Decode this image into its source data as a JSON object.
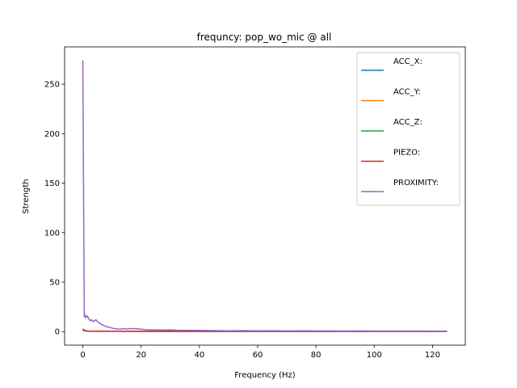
{
  "chart_data": {
    "type": "line",
    "title": "frequncy: pop_wo_mic @ all",
    "xlabel": "Frequency (Hz)",
    "ylabel": "Strength",
    "xlim": [
      -6.25,
      131.25
    ],
    "ylim": [
      -13.7,
      287.7
    ],
    "xticks": [
      0,
      20,
      40,
      60,
      80,
      100,
      120
    ],
    "yticks": [
      0,
      50,
      100,
      150,
      200,
      250
    ],
    "grid": false,
    "legend": "top-right",
    "series": [
      {
        "name": "ACC_X:",
        "color": "#1f77b4",
        "x": [
          0,
          0.5,
          1,
          2,
          5,
          10,
          20,
          40,
          60,
          80,
          100,
          125
        ],
        "y": [
          1.5,
          0.8,
          0.6,
          0.4,
          0.3,
          0.3,
          0.25,
          0.2,
          0.2,
          0.2,
          0.2,
          0.2
        ]
      },
      {
        "name": "ACC_Y:",
        "color": "#ff7f0e",
        "x": [
          0,
          0.5,
          1,
          2,
          5,
          10,
          20,
          40,
          60,
          80,
          100,
          125
        ],
        "y": [
          2.2,
          1.0,
          0.7,
          0.5,
          0.4,
          0.35,
          0.3,
          0.25,
          0.25,
          0.25,
          0.25,
          0.25
        ]
      },
      {
        "name": "ACC_Z:",
        "color": "#2ca02c",
        "x": [
          0,
          0.5,
          1,
          2,
          5,
          10,
          20,
          40,
          60,
          80,
          100,
          125
        ],
        "y": [
          1.8,
          0.9,
          0.6,
          0.5,
          0.4,
          0.35,
          0.3,
          0.25,
          0.25,
          0.25,
          0.25,
          0.25
        ]
      },
      {
        "name": "PIEZO:",
        "color": "#d62728",
        "x": [
          0,
          0.5,
          1,
          2,
          5,
          10,
          20,
          40,
          60,
          80,
          100,
          125
        ],
        "y": [
          3.0,
          1.2,
          0.8,
          0.6,
          0.5,
          0.4,
          0.35,
          0.3,
          0.3,
          0.3,
          0.3,
          0.3
        ]
      },
      {
        "name": "PROXIMITY:",
        "color": "#9467bd",
        "x": [
          0,
          0.25,
          0.5,
          0.75,
          1,
          1.5,
          2,
          2.5,
          3,
          3.5,
          4,
          4.5,
          5,
          5.5,
          6,
          7,
          8,
          9,
          10,
          11,
          12,
          13,
          14,
          15,
          16,
          17,
          18,
          19,
          20,
          22,
          24,
          26,
          28,
          30,
          32,
          35,
          40,
          45,
          50,
          55,
          60,
          65,
          70,
          75,
          80,
          85,
          90,
          95,
          100,
          105,
          110,
          115,
          120,
          125
        ],
        "y": [
          274,
          140,
          15,
          17,
          14,
          16,
          13,
          11,
          12,
          10,
          11,
          12,
          10,
          9,
          8,
          6.5,
          5,
          4.5,
          3.5,
          3,
          2.5,
          2.5,
          3,
          2.6,
          2.8,
          3,
          2.9,
          2.7,
          2.4,
          1.8,
          1.6,
          1.8,
          1.5,
          1.7,
          1.4,
          1.3,
          1.2,
          1.0,
          0.8,
          1.0,
          0.8,
          0.9,
          0.7,
          0.8,
          0.7,
          0.7,
          0.6,
          0.7,
          0.6,
          0.6,
          0.6,
          0.6,
          0.5,
          0.5
        ]
      }
    ]
  }
}
